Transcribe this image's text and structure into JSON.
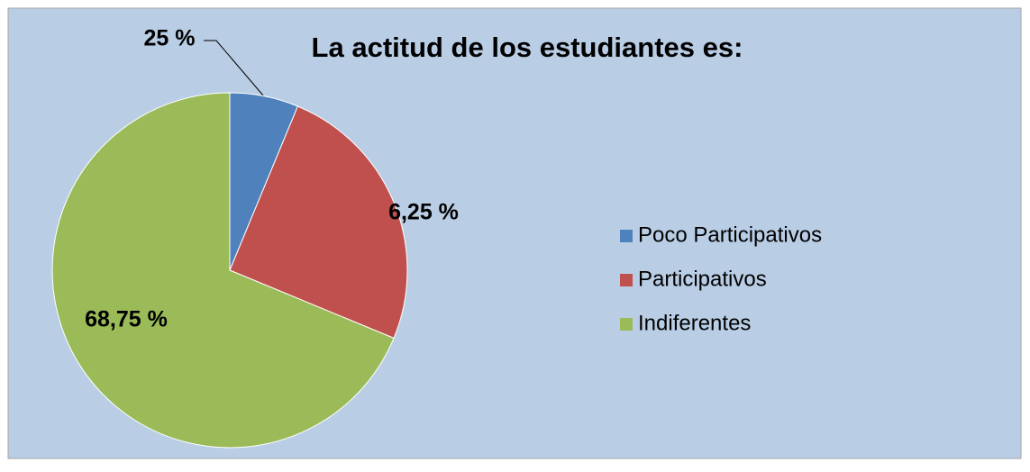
{
  "chart_data": {
    "type": "pie",
    "title": "La actitud de los estudiantes es:",
    "categories": [
      "Poco Participativos",
      "Participativos",
      "Indiferentes"
    ],
    "values": [
      6.25,
      25,
      68.75
    ],
    "value_labels": [
      "6,25 %",
      "25 %",
      "68,75 %"
    ],
    "colors": [
      "#4f81bd",
      "#c0504d",
      "#9bbb59"
    ],
    "legend": "right"
  }
}
